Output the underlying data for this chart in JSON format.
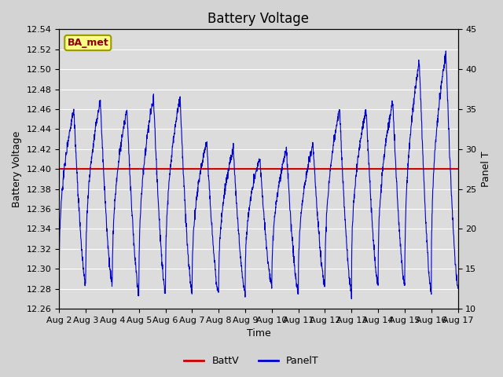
{
  "title": "Battery Voltage",
  "xlabel": "Time",
  "ylabel_left": "Battery Voltage",
  "ylabel_right": "Panel T",
  "ylim_left": [
    12.26,
    12.54
  ],
  "ylim_right": [
    10,
    45
  ],
  "yticks_left": [
    12.26,
    12.28,
    12.3,
    12.32,
    12.34,
    12.36,
    12.38,
    12.4,
    12.42,
    12.44,
    12.46,
    12.48,
    12.5,
    12.52,
    12.54
  ],
  "yticks_right": [
    10,
    15,
    20,
    25,
    30,
    35,
    40,
    45
  ],
  "xtick_labels": [
    "Aug 2",
    "Aug 3",
    "Aug 4",
    "Aug 5",
    "Aug 6",
    "Aug 7",
    "Aug 8",
    "Aug 9",
    "Aug 10",
    "Aug 11",
    "Aug 12",
    "Aug 13",
    "Aug 14",
    "Aug 15",
    "Aug 16",
    "Aug 17"
  ],
  "batt_v_value": 12.4,
  "batt_v_color": "#cc0000",
  "panel_t_color": "#0000cc",
  "plot_bg_color": "#dcdcdc",
  "fig_bg_color": "#d3d3d3",
  "grid_color": "#ffffff",
  "legend_label_batt": "BattV",
  "legend_label_panel": "PanelT",
  "annotation_text": "BA_met",
  "title_fontsize": 12,
  "axis_fontsize": 9,
  "tick_fontsize": 8,
  "legend_fontsize": 9
}
